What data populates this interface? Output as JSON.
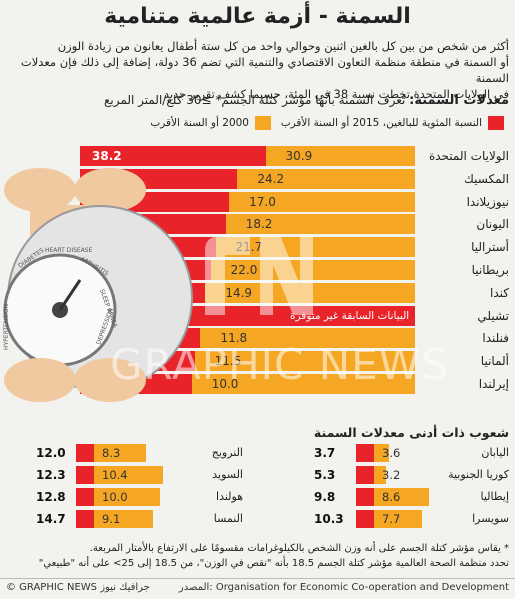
{
  "title": "السمنة - أزمة عالمية متنامية",
  "intro": [
    "أكثر من شخص من بين كل بالغين اثنين وحوالي واحد من كل ستة أطفال يعانون من زيادة الوزن",
    "أو السمنة في منطقة منظمة التعاون الاقتصادي والتنمية التي تضم 36 دولة، إضافة إلى ذلك فإن معدلات السمنة",
    "في الولايات المتحدة تخطت نسبة 38 في المئة، حسبما كشف تقرير جديد"
  ],
  "section_title": "معدلات السمنة:",
  "section_sub": "تُعرف السمنة بأنها مؤشر كتلة الجسم* ≥30 كلغ/المتر المربع",
  "legend": {
    "red_label": "النسبة المئوية للبالغين، 2015 أو السنة الأقرب",
    "orange_label": "2000 أو السنة الأقرب",
    "red_color": "#e8232a",
    "orange_color": "#f5a623"
  },
  "art_labels": [
    "DIABETES",
    "HEART DISEASE",
    "ARTHRITIS",
    "SLEEP APNEA",
    "HYPERTENSION",
    "DEPRESSION"
  ],
  "watermark": "GRAPHIC NEWS",
  "not_available_label": "البيانات السابقة غير متوفرة",
  "low_title": "شعوب ذات أدنى معدلات السمنة",
  "chart_data": [
    {
      "type": "bar",
      "title": "معدلات السمنة",
      "categories": [
        "الولايات المتحدة",
        "المكسيك",
        "نيوزيلاندا",
        "اليونان",
        "أستراليا",
        "بريطانيا",
        "كندا",
        "تشيلي",
        "فنلندا",
        "ألمانيا",
        "إيرلندا"
      ],
      "series": [
        {
          "name": "النسبة المئوية للبالغين، 2015 أو السنة الأقرب",
          "values": [
            38.2,
            32.4,
            30.7,
            30.0,
            27.9,
            26.9,
            25.8,
            25.1,
            24.8,
            23.6,
            23.0
          ]
        },
        {
          "name": "2000 أو السنة الأقرب",
          "values": [
            30.9,
            24.2,
            17.0,
            18.2,
            21.7,
            22.0,
            14.9,
            null,
            11.8,
            11.5,
            10.0
          ]
        }
      ],
      "xlim": [
        0,
        40
      ]
    },
    {
      "type": "bar",
      "title": "شعوب ذات أدنى معدلات السمنة",
      "categories": [
        "اليابان",
        "كوريا الجنوبية",
        "إيطاليا",
        "سويسرا",
        "النرويج",
        "السويد",
        "هولندا",
        "النمسا"
      ],
      "series": [
        {
          "name": "النسبة المئوية للبالغين، 2015 أو السنة الأقرب",
          "values": [
            3.7,
            5.3,
            9.8,
            10.3,
            12.0,
            12.3,
            12.8,
            14.7
          ]
        },
        {
          "name": "2000 أو السنة الأقرب",
          "values": [
            3.6,
            3.2,
            8.6,
            7.7,
            8.3,
            10.4,
            10.0,
            9.1
          ]
        }
      ]
    }
  ],
  "notes": [
    "* يقاس مؤشر كتلة الجسم على أنه وزن الشخص بالكيلوغرامات مقسومًا على الارتفاع بالأمتار المربعة.",
    "تحدد منظمة الصحة العالمية مؤشر كتلة الجسم 18.5 بأنه \"نقص في الوزن\"، من 18.5 إلى 25> على أنه \"طبيعي\""
  ],
  "source": "المصدر: Organisation for Economic Co-operation and Development",
  "credit": "© GRAPHIC NEWS جرافيك نيوز"
}
